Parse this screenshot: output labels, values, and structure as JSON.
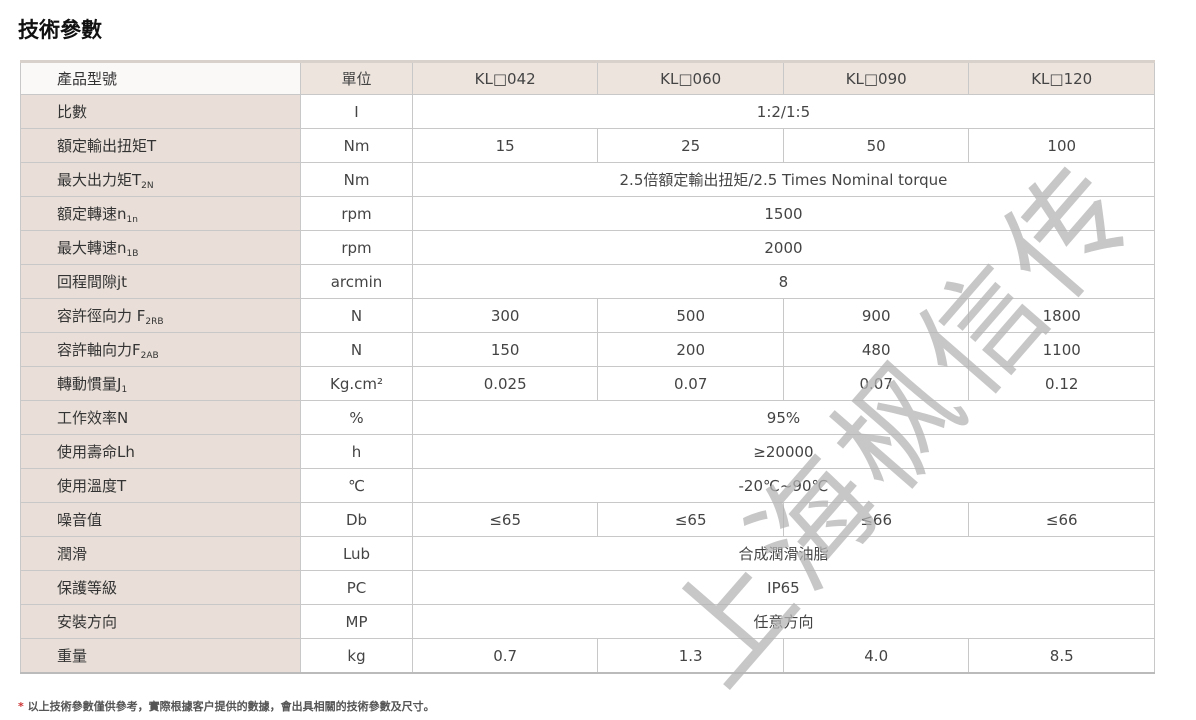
{
  "title": "技術參數",
  "header": {
    "label": "產品型號",
    "unit": "單位",
    "models": [
      "KL□042",
      "KL□060",
      "KL□090",
      "KL□120"
    ]
  },
  "rows": [
    {
      "label": "比數",
      "sub": "",
      "unit": "I",
      "values": [
        "1:2/1:5"
      ]
    },
    {
      "label": "額定輸出扭矩T",
      "sub": "",
      "unit": "Nm",
      "values": [
        "15",
        "25",
        "50",
        "100"
      ]
    },
    {
      "label": "最大出力矩T",
      "sub": "2N",
      "unit": "Nm",
      "values": [
        "2.5倍額定輸出扭矩/2.5 Times Nominal torque"
      ]
    },
    {
      "label": "額定轉速n",
      "sub": "1n",
      "unit": "rpm",
      "values": [
        "1500"
      ]
    },
    {
      "label": "最大轉速n",
      "sub": "1B",
      "unit": "rpm",
      "values": [
        "2000"
      ]
    },
    {
      "label": "回程間隙jt",
      "sub": "",
      "unit": "arcmin",
      "values": [
        "8"
      ]
    },
    {
      "label": "容許徑向力 F",
      "sub": "2RB",
      "unit": "N",
      "values": [
        "300",
        "500",
        "900",
        "1800"
      ]
    },
    {
      "label": "容許軸向力F",
      "sub": "2AB",
      "unit": "N",
      "values": [
        "150",
        "200",
        "480",
        "1100"
      ]
    },
    {
      "label": "轉動慣量J",
      "sub": "1",
      "unit": "Kg.cm²",
      "values": [
        "0.025",
        "0.07",
        "0.07",
        "0.12"
      ]
    },
    {
      "label": "工作效率N",
      "sub": "",
      "unit": "%",
      "values": [
        "95%"
      ]
    },
    {
      "label": "使用壽命Lh",
      "sub": "",
      "unit": "h",
      "values": [
        "≥20000"
      ]
    },
    {
      "label": "使用溫度T",
      "sub": "",
      "unit": "℃",
      "values": [
        "-20℃~90℃"
      ]
    },
    {
      "label": "噪音值",
      "sub": "",
      "unit": "Db",
      "values": [
        "≤65",
        "≤65",
        "≤66",
        "≤66"
      ]
    },
    {
      "label": "潤滑",
      "sub": "",
      "unit": "Lub",
      "values": [
        "合成潤滑油脂"
      ]
    },
    {
      "label": "保護等級",
      "sub": "",
      "unit": "PC",
      "values": [
        "IP65"
      ]
    },
    {
      "label": "安裝方向",
      "sub": "",
      "unit": "MP",
      "values": [
        "任意方向"
      ]
    },
    {
      "label": "重量",
      "sub": "",
      "unit": "kg",
      "values": [
        "0.7",
        "1.3",
        "4.0",
        "8.5"
      ]
    }
  ],
  "footnote": {
    "star": "*",
    "text": "以上技術參數僅供參考，實際根據客户提供的數據，會出具相關的技術參數及尺寸。"
  },
  "watermark": "上海枫信传"
}
